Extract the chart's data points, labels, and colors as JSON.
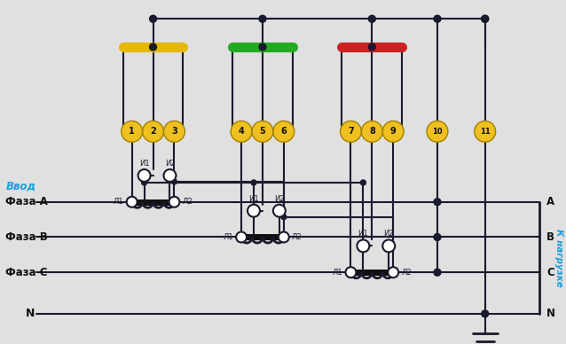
{
  "bg_color": "#e0e0e0",
  "wire_color": "#1a1a2e",
  "wire_lw": 1.5,
  "thick_wire_lw": 5.0,
  "terminal_color": "#f0c020",
  "terminal_ec": "#a08000",
  "dot_color": "#1a1a2e",
  "label_color_blue": "#1a9fdc",
  "label_color_black": "#111111",
  "fuse_yellow": "#e8b800",
  "fuse_green": "#22aa22",
  "fuse_red": "#cc2222",
  "phase_labels_left": [
    "Фаза A",
    "Фаза B",
    "Фаза C",
    "N"
  ],
  "vvod_label": "Ввод",
  "nagruzka_label": "К нагрузке",
  "right_labels": [
    "A",
    "B",
    "C",
    "N"
  ],
  "terminal_numbers": [
    "1",
    "2",
    "3",
    "4",
    "5",
    "6",
    "7",
    "8",
    "9",
    "10",
    "11"
  ]
}
